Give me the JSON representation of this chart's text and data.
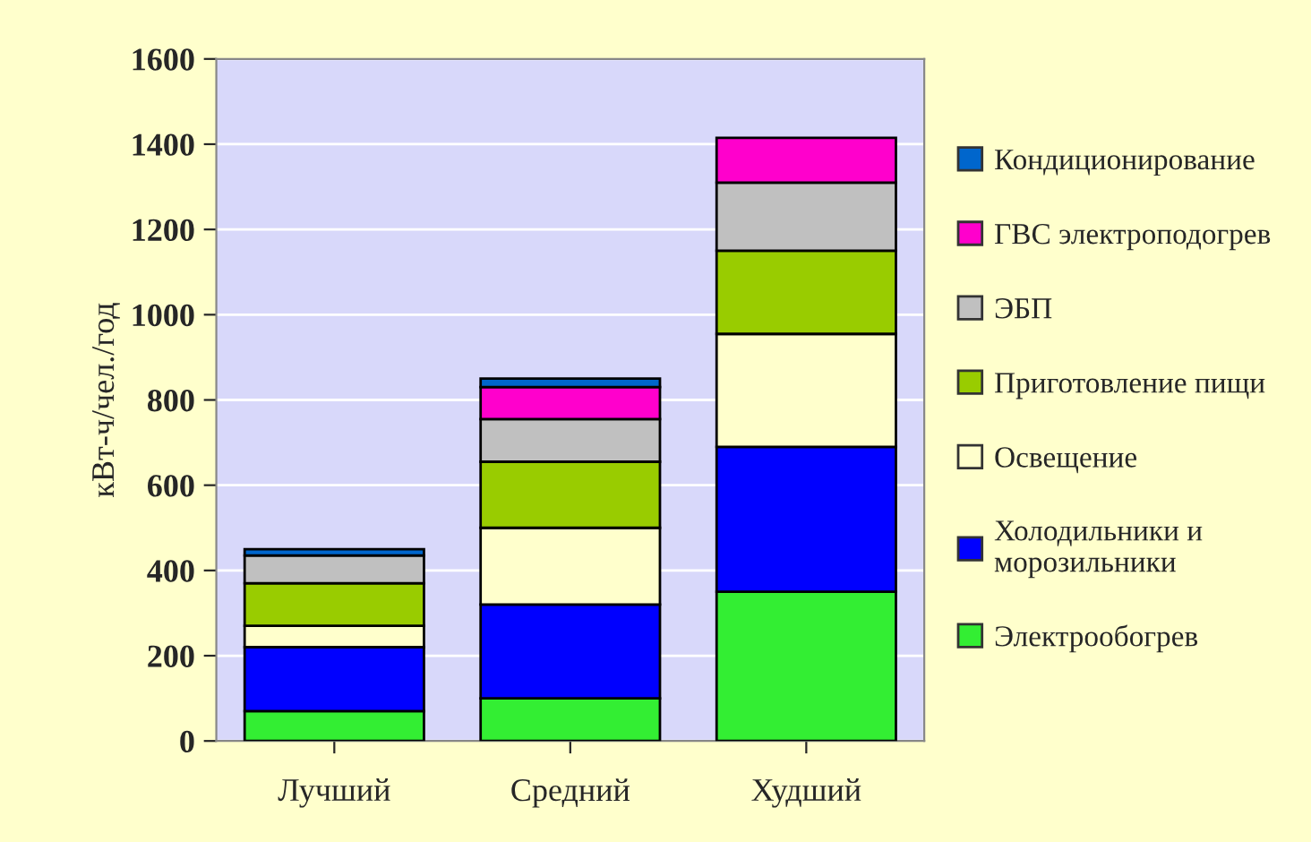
{
  "chart_data": {
    "type": "bar",
    "stacked": true,
    "ylabel": "кВт-ч/чел./год",
    "categories": [
      "Лучший",
      "Средний",
      "Худший"
    ],
    "series": [
      {
        "name": "Электрообогрев",
        "color": "#33ee33",
        "values": [
          70,
          100,
          350
        ]
      },
      {
        "name": "Холодильники и\nморозильники",
        "color": "#0000ff",
        "values": [
          150,
          220,
          340
        ]
      },
      {
        "name": "Освещение",
        "color": "#ffffcc",
        "values": [
          50,
          180,
          265
        ]
      },
      {
        "name": "Приготовление пищи",
        "color": "#99cc00",
        "values": [
          100,
          155,
          195
        ]
      },
      {
        "name": "ЭБП",
        "color": "#c0c0c0",
        "values": [
          65,
          100,
          160
        ]
      },
      {
        "name": "ГВС электроподогрев",
        "color": "#ff00cc",
        "values": [
          0,
          75,
          105
        ]
      },
      {
        "name": "Кондиционирование",
        "color": "#0066cc",
        "values": [
          15,
          20,
          0
        ]
      }
    ],
    "ylim": [
      0,
      1600
    ],
    "yticks": [
      0,
      200,
      400,
      600,
      800,
      1000,
      1200,
      1400,
      1600
    ],
    "grid": "y",
    "legend": "right"
  }
}
